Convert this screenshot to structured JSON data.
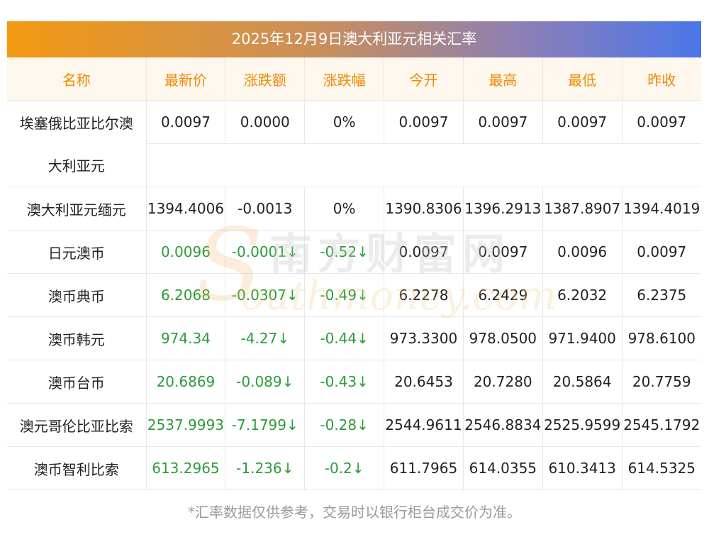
{
  "title": "2025年12月9日澳大利亚元相关汇率",
  "headers": [
    "名称",
    "最新价",
    "涨跌额",
    "涨跌幅",
    "今开",
    "最高",
    "最低",
    "昨收"
  ],
  "rows": [
    {
      "name1": "埃塞俄比亚比尔澳",
      "name2": "大利亚元",
      "latest": "0.0097",
      "change": "0.0000",
      "pct": "0%",
      "open": "0.0097",
      "high": "0.0097",
      "low": "0.0097",
      "prev": "0.0097",
      "trend": "flat"
    },
    {
      "name": "澳大利亚元缅元",
      "latest": "1394.4006",
      "change": "-0.0013",
      "pct": "0%",
      "open": "1390.8306",
      "high": "1396.2913",
      "low": "1387.8907",
      "prev": "1394.4019",
      "trend": "flat"
    },
    {
      "name": "日元澳币",
      "latest": "0.0096",
      "change": "-0.0001↓",
      "pct": "-0.52↓",
      "open": "0.0097",
      "high": "0.0097",
      "low": "0.0096",
      "prev": "0.0097",
      "trend": "down"
    },
    {
      "name": "澳币典币",
      "latest": "6.2068",
      "change": "-0.0307↓",
      "pct": "-0.49↓",
      "open": "6.2278",
      "high": "6.2429",
      "low": "6.2032",
      "prev": "6.2375",
      "trend": "down"
    },
    {
      "name": "澳币韩元",
      "latest": "974.34",
      "change": "-4.27↓",
      "pct": "-0.44↓",
      "open": "973.3300",
      "high": "978.0500",
      "low": "971.9400",
      "prev": "978.6100",
      "trend": "down"
    },
    {
      "name": "澳币台币",
      "latest": "20.6869",
      "change": "-0.089↓",
      "pct": "-0.43↓",
      "open": "20.6453",
      "high": "20.7280",
      "low": "20.5864",
      "prev": "20.7759",
      "trend": "down"
    },
    {
      "name": "澳元哥伦比亚比索",
      "latest": "2537.9993",
      "change": "-7.1799↓",
      "pct": "-0.28↓",
      "open": "2544.9611",
      "high": "2546.8834",
      "low": "2525.9599",
      "prev": "2545.1792",
      "trend": "down"
    },
    {
      "name": "澳币智利比索",
      "latest": "613.2965",
      "change": "-1.236↓",
      "pct": "-0.2↓",
      "open": "611.7965",
      "high": "614.0355",
      "low": "610.3413",
      "prev": "614.5325",
      "trend": "down"
    }
  ],
  "footnote": "*汇率数据仅供参考，交易时以银行柜台成交价为准。",
  "watermark": {
    "cn": "南方财富网",
    "en": "outhmoney.com",
    "s": "S"
  },
  "colors": {
    "header_text": "#f08a00",
    "down": "#2c9c3a",
    "note": "#9a9a9a"
  }
}
